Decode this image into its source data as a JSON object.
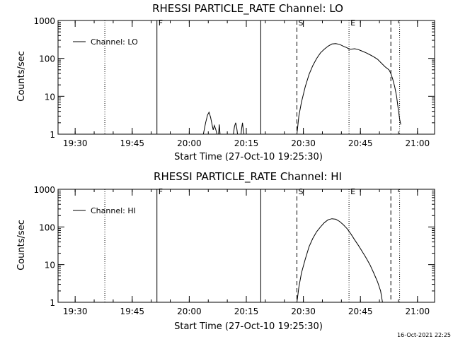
{
  "footer": {
    "timestamp": "16-Oct-2021 22:25"
  },
  "chart_data": [
    {
      "type": "line",
      "title": "RHESSI PARTICLE_RATE Channel: LO",
      "xlabel": "Start Time (27-Oct-10 19:25:30)",
      "ylabel": "Counts/sec",
      "y_scale": "log",
      "ylim": [
        1,
        1000
      ],
      "xlim_minutes_after_start": [
        0,
        99
      ],
      "x_ticks": [
        {
          "t": 4.5,
          "label": "19:30"
        },
        {
          "t": 19.5,
          "label": "19:45"
        },
        {
          "t": 34.5,
          "label": "20:00"
        },
        {
          "t": 49.5,
          "label": "20:15"
        },
        {
          "t": 64.5,
          "label": "20:30"
        },
        {
          "t": 79.5,
          "label": "20:45"
        },
        {
          "t": 94.5,
          "label": "21:00"
        }
      ],
      "y_ticks": [
        {
          "v": 1,
          "label": "1"
        },
        {
          "v": 10,
          "label": "10"
        },
        {
          "v": 100,
          "label": "100"
        },
        {
          "v": 1000,
          "label": "1000"
        }
      ],
      "legend": {
        "position": "top-left",
        "label": "Channel: LO"
      },
      "flag_lines": [
        {
          "t": 12.3,
          "style": "dotted",
          "label": ""
        },
        {
          "t": 26.0,
          "style": "solid",
          "label": "F"
        },
        {
          "t": 53.3,
          "style": "solid",
          "label": ""
        },
        {
          "t": 62.8,
          "style": "dashed",
          "label": "S"
        },
        {
          "t": 76.5,
          "style": "dotted",
          "label": "E"
        },
        {
          "t": 87.5,
          "style": "dashed",
          "label": ""
        },
        {
          "t": 89.8,
          "style": "dotted",
          "label": ""
        }
      ],
      "series": [
        {
          "name": "Channel: LO",
          "segments": [
            [
              [
                38.2,
                1
              ],
              [
                38.8,
                2
              ],
              [
                39.3,
                3.2
              ],
              [
                39.7,
                3.8
              ],
              [
                40.1,
                2.8
              ],
              [
                40.5,
                1.8
              ],
              [
                40.8,
                1.3
              ],
              [
                41.1,
                1.7
              ],
              [
                41.5,
                1.3
              ],
              [
                41.8,
                1
              ]
            ],
            [
              [
                42.2,
                1
              ],
              [
                42.4,
                1.8
              ],
              [
                42.6,
                1
              ]
            ],
            [
              [
                46.1,
                1
              ],
              [
                46.4,
                1.6
              ],
              [
                46.7,
                2
              ],
              [
                47.0,
                1.4
              ],
              [
                47.2,
                1
              ]
            ],
            [
              [
                48.1,
                1
              ],
              [
                48.3,
                1.5
              ],
              [
                48.5,
                2
              ],
              [
                48.7,
                1.3
              ],
              [
                48.9,
                1
              ]
            ],
            [
              [
                62.8,
                1
              ],
              [
                63.3,
                3
              ],
              [
                64.0,
                7
              ],
              [
                65.0,
                18
              ],
              [
                66.0,
                38
              ],
              [
                67.0,
                65
              ],
              [
                68.0,
                100
              ],
              [
                69.0,
                140
              ],
              [
                70.0,
                175
              ],
              [
                71.0,
                210
              ],
              [
                72.0,
                240
              ],
              [
                73.0,
                245
              ],
              [
                74.0,
                235
              ],
              [
                75.0,
                210
              ],
              [
                76.0,
                190
              ],
              [
                76.5,
                175
              ],
              [
                77.0,
                175
              ],
              [
                78.0,
                180
              ],
              [
                79.0,
                170
              ],
              [
                80.0,
                155
              ],
              [
                81.0,
                140
              ],
              [
                82.0,
                125
              ],
              [
                83.0,
                110
              ],
              [
                84.0,
                95
              ],
              [
                85.0,
                75
              ],
              [
                86.0,
                60
              ],
              [
                87.0,
                50
              ],
              [
                87.5,
                40
              ],
              [
                88.0,
                28
              ],
              [
                88.5,
                18
              ],
              [
                89.0,
                10
              ],
              [
                89.4,
                5
              ],
              [
                89.8,
                2.5
              ],
              [
                90.1,
                1.8
              ]
            ]
          ]
        }
      ]
    },
    {
      "type": "line",
      "title": "RHESSI PARTICLE_RATE Channel: HI",
      "xlabel": "Start Time (27-Oct-10 19:25:30)",
      "ylabel": "Counts/sec",
      "y_scale": "log",
      "ylim": [
        1,
        1000
      ],
      "xlim_minutes_after_start": [
        0,
        99
      ],
      "x_ticks": [
        {
          "t": 4.5,
          "label": "19:30"
        },
        {
          "t": 19.5,
          "label": "19:45"
        },
        {
          "t": 34.5,
          "label": "20:00"
        },
        {
          "t": 49.5,
          "label": "20:15"
        },
        {
          "t": 64.5,
          "label": "20:30"
        },
        {
          "t": 79.5,
          "label": "20:45"
        },
        {
          "t": 94.5,
          "label": "21:00"
        }
      ],
      "y_ticks": [
        {
          "v": 1,
          "label": "1"
        },
        {
          "v": 10,
          "label": "10"
        },
        {
          "v": 100,
          "label": "100"
        },
        {
          "v": 1000,
          "label": "1000"
        }
      ],
      "legend": {
        "position": "top-left",
        "label": "Channel: HI"
      },
      "flag_lines": [
        {
          "t": 12.3,
          "style": "dotted",
          "label": ""
        },
        {
          "t": 26.0,
          "style": "solid",
          "label": "F"
        },
        {
          "t": 53.3,
          "style": "solid",
          "label": ""
        },
        {
          "t": 62.8,
          "style": "dashed",
          "label": "S"
        },
        {
          "t": 76.5,
          "style": "dotted",
          "label": "E"
        },
        {
          "t": 87.5,
          "style": "dashed",
          "label": ""
        },
        {
          "t": 89.8,
          "style": "dotted",
          "label": ""
        }
      ],
      "series": [
        {
          "name": "Channel: HI",
          "segments": [
            [
              [
                62.8,
                1
              ],
              [
                63.3,
                2.5
              ],
              [
                64.0,
                6
              ],
              [
                65.0,
                14
              ],
              [
                66.0,
                30
              ],
              [
                67.0,
                50
              ],
              [
                68.0,
                75
              ],
              [
                69.0,
                100
              ],
              [
                70.0,
                130
              ],
              [
                71.0,
                155
              ],
              [
                72.0,
                165
              ],
              [
                73.0,
                160
              ],
              [
                74.0,
                140
              ],
              [
                75.0,
                115
              ],
              [
                76.0,
                90
              ],
              [
                77.0,
                65
              ],
              [
                78.0,
                45
              ],
              [
                79.0,
                32
              ],
              [
                80.0,
                22
              ],
              [
                81.0,
                15
              ],
              [
                82.0,
                10
              ],
              [
                83.0,
                6
              ],
              [
                84.0,
                3.5
              ],
              [
                84.8,
                2
              ],
              [
                85.3,
                1
              ]
            ]
          ]
        }
      ]
    }
  ]
}
